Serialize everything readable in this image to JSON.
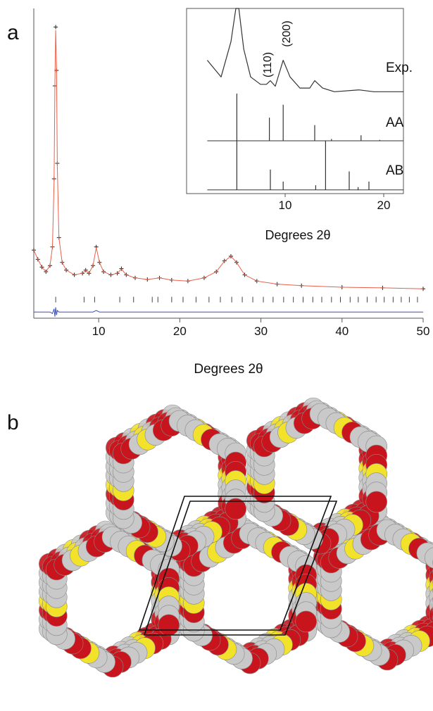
{
  "panel_labels": [
    "a",
    "b"
  ],
  "chart_data": [
    {
      "type": "line",
      "xlabel": "Degrees 2θ",
      "xlim": [
        2,
        50
      ],
      "xticks": [
        10,
        20,
        30,
        40,
        50
      ],
      "ylim": [
        0,
        100
      ],
      "x": [
        2,
        2.5,
        3,
        3.5,
        4,
        4.3,
        4.5,
        4.6,
        4.7,
        4.8,
        4.9,
        5.1,
        5.5,
        6,
        7,
        8,
        8.4,
        8.8,
        9.3,
        9.7,
        10.1,
        10.6,
        11.5,
        12.3,
        12.8,
        13.4,
        14.5,
        16,
        17.5,
        19,
        21,
        23,
        24.5,
        25.5,
        26.3,
        27,
        28,
        29.5,
        32,
        35,
        40,
        45,
        50
      ],
      "series": [
        {
          "style": "plus",
          "color": "#222222",
          "values": [
            22,
            19,
            16.5,
            15,
            17,
            23,
            45,
            75,
            94,
            80,
            50,
            26,
            18,
            15.5,
            14,
            14.5,
            15.5,
            14.5,
            17,
            23,
            18,
            15,
            14,
            14.5,
            16,
            14,
            13,
            12.5,
            13,
            12.3,
            12,
            13,
            15,
            18.5,
            20,
            18,
            14,
            12,
            11,
            10.5,
            10,
            9.8,
            9.5
          ]
        },
        {
          "style": "line",
          "color": "#e8604a",
          "values": [
            22,
            19,
            16.5,
            15,
            17,
            23,
            44,
            76,
            93,
            81,
            49,
            26,
            18,
            15.5,
            14,
            14.5,
            15.4,
            14.5,
            17,
            22.8,
            18,
            15,
            14,
            14.5,
            15.9,
            14,
            13,
            12.5,
            13,
            12.3,
            12,
            13,
            15,
            18.4,
            20,
            18,
            14,
            12,
            11,
            10.5,
            10,
            9.8,
            9.5
          ]
        },
        {
          "style": "line",
          "color": "#3a4fc0",
          "values": [
            2,
            2,
            2,
            2,
            2,
            1.5,
            3,
            0.5,
            3.5,
            1,
            2.5,
            2,
            2,
            2,
            2,
            2,
            2,
            2,
            2,
            2.5,
            2,
            2,
            2,
            2,
            2,
            2,
            2,
            2,
            2,
            2,
            2,
            2,
            2,
            2,
            2,
            2,
            2,
            2,
            2,
            2,
            2,
            2,
            2
          ]
        }
      ],
      "reflections": {
        "y": 6,
        "x": [
          4.7,
          8.2,
          9.5,
          12.6,
          14.3,
          16.6,
          17.3,
          19.0,
          20.4,
          22.0,
          23.6,
          25.0,
          26.4,
          27.7,
          29.0,
          30.3,
          31.5,
          32.8,
          34.0,
          35.2,
          36.4,
          37.5,
          38.7,
          39.8,
          41.0,
          42.0,
          43.1,
          44.2,
          45.2,
          46.3,
          47.3,
          48.3,
          49.3
        ]
      }
    },
    {
      "type": "line",
      "xlabel": "Degrees 2θ",
      "xlim": [
        0,
        22
      ],
      "xticks": [
        10,
        20
      ],
      "ylim": [
        0,
        100
      ],
      "annotations": [
        "(110)",
        "(200)"
      ],
      "series": [
        {
          "name": "Exp.",
          "style": "line",
          "color": "#333333",
          "x": [
            2.1,
            3.5,
            4.5,
            5.0,
            5.3,
            5.8,
            6.5,
            7.5,
            8.1,
            8.5,
            9.0,
            9.8,
            10.5,
            11.5,
            12.5,
            13,
            13.8,
            15,
            17.5,
            19,
            22
          ],
          "values": [
            72,
            63,
            82,
            100,
            100,
            78,
            63,
            59,
            59,
            61,
            58,
            72,
            63,
            57,
            57,
            61,
            57,
            55,
            56,
            55,
            55
          ]
        },
        {
          "name": "AA",
          "style": "sticks",
          "color": "#333333",
          "baseline": 28.5,
          "xrange": [
            2.1,
            22
          ],
          "x": [
            5.1,
            8.4,
            9.8,
            13.0,
            14.7,
            17.7,
            19.6
          ],
          "values": [
            54,
            41,
            48,
            37,
            29.5,
            31.5,
            29
          ]
        },
        {
          "name": "AB",
          "style": "sticks",
          "color": "#333333",
          "baseline": 2,
          "xrange": [
            2.1,
            22
          ],
          "x": [
            5.1,
            8.5,
            9.8,
            13.1,
            14.1,
            16.5,
            17.4,
            18.5
          ],
          "values": [
            28.5,
            13,
            6.5,
            4.5,
            28.5,
            12,
            3.5,
            6.5
          ]
        }
      ]
    }
  ]
}
